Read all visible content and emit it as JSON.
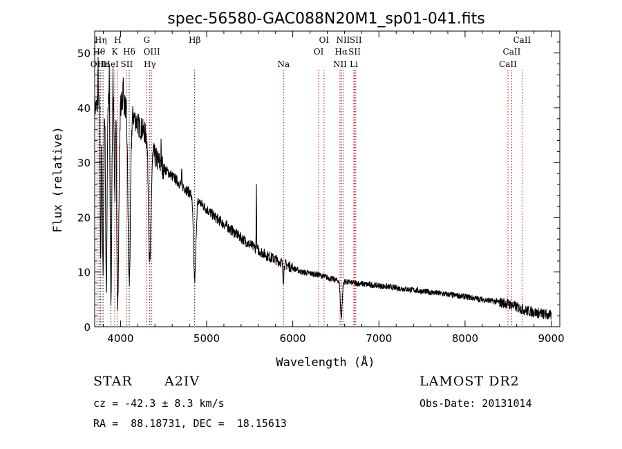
{
  "chart_data": {
    "type": "line",
    "title": "spec-56580-GAC088N20M1_sp01-041.fits",
    "xlabel": "Wavelength (Å)",
    "ylabel": "Flux (relative)",
    "xlim": [
      3700,
      9100
    ],
    "ylim": [
      0,
      54
    ],
    "xticks": [
      4000,
      5000,
      6000,
      7000,
      8000,
      9000
    ],
    "yticks": [
      0,
      10,
      20,
      30,
      40,
      50
    ],
    "grid": false,
    "line_color": "#000000",
    "marker_color": "#cc0000",
    "continuum_points": [
      [
        3700,
        40
      ],
      [
        3800,
        41
      ],
      [
        3900,
        41.5
      ],
      [
        4000,
        41
      ],
      [
        4100,
        40
      ],
      [
        4200,
        37
      ],
      [
        4300,
        35
      ],
      [
        4400,
        31
      ],
      [
        4500,
        29
      ],
      [
        4700,
        26
      ],
      [
        4900,
        23
      ],
      [
        5100,
        20
      ],
      [
        5300,
        17.5
      ],
      [
        5500,
        15
      ],
      [
        5700,
        13
      ],
      [
        5900,
        11.5
      ],
      [
        6100,
        10
      ],
      [
        6300,
        9.5
      ],
      [
        6500,
        8.5
      ],
      [
        6700,
        8
      ],
      [
        7000,
        7.5
      ],
      [
        7500,
        6.5
      ],
      [
        8000,
        5.5
      ],
      [
        8500,
        4.2
      ],
      [
        8700,
        3
      ],
      [
        9000,
        2
      ]
    ],
    "absorption_lines": [
      {
        "x": 3770,
        "depth": 30,
        "width": 6
      },
      {
        "x": 3797,
        "depth": 32,
        "width": 7
      },
      {
        "x": 3835,
        "depth": 35,
        "width": 8
      },
      {
        "x": 3889,
        "depth": 37,
        "width": 9
      },
      {
        "x": 3933,
        "depth": 17,
        "width": 6
      },
      {
        "x": 3968,
        "depth": 37,
        "width": 12
      },
      {
        "x": 4101,
        "depth": 32,
        "width": 14
      },
      {
        "x": 4340,
        "depth": 22,
        "width": 14
      },
      {
        "x": 4861,
        "depth": 15,
        "width": 14
      },
      {
        "x": 5890,
        "depth": 3,
        "width": 6
      },
      {
        "x": 6563,
        "depth": 6.5,
        "width": 11
      }
    ],
    "spikes": [
      {
        "x": 3740,
        "height": 8
      },
      {
        "x": 3870,
        "height": 10
      },
      {
        "x": 3912,
        "height": 8
      },
      {
        "x": 3950,
        "height": 7
      },
      {
        "x": 4030,
        "height": 6
      },
      {
        "x": 5577,
        "height": 12
      },
      {
        "x": 4470,
        "height": 3
      },
      {
        "x": 4710,
        "height": 2.5
      }
    ],
    "line_markers": [
      {
        "x": 3727,
        "label": "OII",
        "row": 3,
        "color": "#cc0000"
      },
      {
        "x": 3750,
        "label": "Hθ",
        "row": 2,
        "color": "#000000"
      },
      {
        "x": 3770,
        "label": "Hη",
        "row": 1,
        "color": "#000000"
      },
      {
        "x": 3797,
        "label": "Hε",
        "row": 3,
        "color": "#000000"
      },
      {
        "x": 3889,
        "label": "HeI",
        "row": 3,
        "color": "#000000"
      },
      {
        "x": 3933,
        "label": "K",
        "row": 2,
        "color": "#cc0000"
      },
      {
        "x": 3968,
        "label": "H",
        "row": 1,
        "color": "#cc0000"
      },
      {
        "x": 4072,
        "label": "SII",
        "row": 3,
        "color": "#cc0000"
      },
      {
        "x": 4101,
        "label": "Hδ",
        "row": 2,
        "color": "#000000"
      },
      {
        "x": 4305,
        "label": "G",
        "row": 1,
        "color": "#cc0000"
      },
      {
        "x": 4340,
        "label": "Hγ",
        "row": 3,
        "color": "#000000"
      },
      {
        "x": 4363,
        "label": "OIII",
        "row": 2,
        "color": "#cc0000"
      },
      {
        "x": 4861,
        "label": "Hβ",
        "row": 1,
        "color": "#000000"
      },
      {
        "x": 5893,
        "label": "Na",
        "row": 3,
        "color": "#cc0000"
      },
      {
        "x": 6300,
        "label": "OI",
        "row": 2,
        "color": "#cc0000"
      },
      {
        "x": 6363,
        "label": "OI",
        "row": 1,
        "color": "#cc0000"
      },
      {
        "x": 6548,
        "label": "NII",
        "row": 3,
        "color": "#cc0000"
      },
      {
        "x": 6563,
        "label": "Hα",
        "row": 2,
        "color": "#000000"
      },
      {
        "x": 6584,
        "label": "NII",
        "row": 1,
        "color": "#cc0000"
      },
      {
        "x": 6708,
        "label": "Li",
        "row": 3,
        "color": "#cc0000"
      },
      {
        "x": 6717,
        "label": "SII",
        "row": 2,
        "color": "#cc0000"
      },
      {
        "x": 6731,
        "label": "SII",
        "row": 1,
        "color": "#cc0000"
      },
      {
        "x": 8498,
        "label": "CaII",
        "row": 3,
        "color": "#cc0000"
      },
      {
        "x": 8542,
        "label": "CaII",
        "row": 2,
        "color": "#cc0000"
      },
      {
        "x": 8662,
        "label": "CaII",
        "row": 1,
        "color": "#cc0000"
      }
    ]
  },
  "info": {
    "class_label": "STAR",
    "subclass": "A2IV",
    "survey": "LAMOST DR2",
    "redshift_line": "cz = -42.3 ± 8.3 km/s",
    "obs_date_line": "Obs-Date: 20131014",
    "coords_line": "RA =  88.18731, DEC =  18.15613"
  }
}
